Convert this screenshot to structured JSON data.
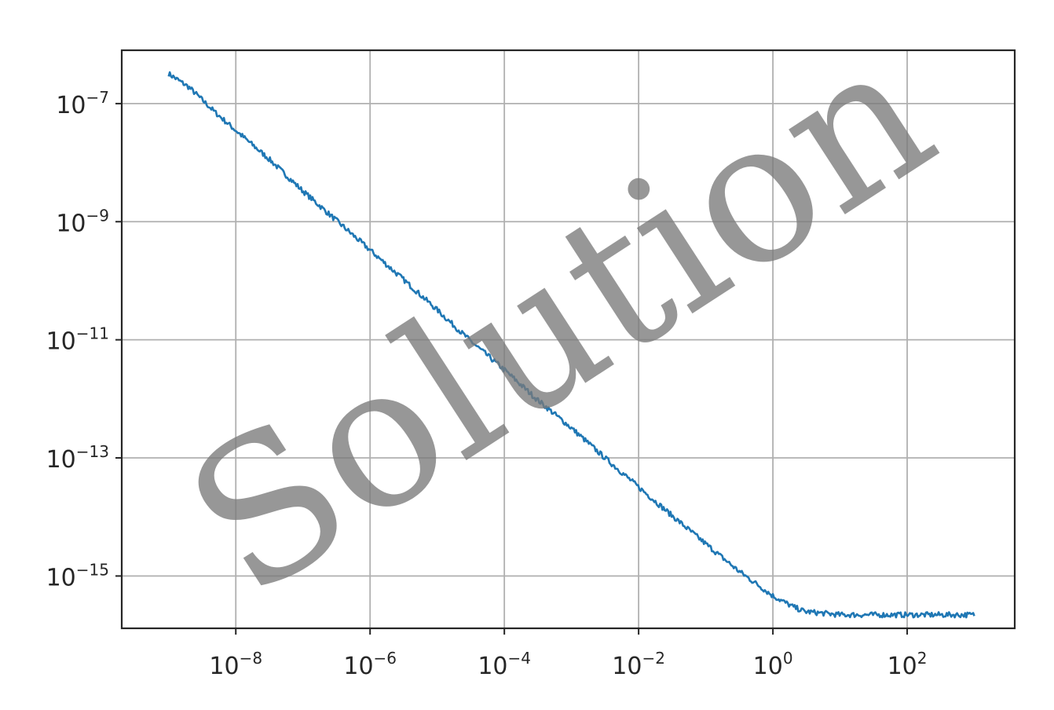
{
  "chart_data": {
    "type": "line",
    "title": "",
    "xlabel": "",
    "ylabel": "",
    "xscale": "log",
    "yscale": "log",
    "xlim": [
      2e-10,
      4000
    ],
    "ylim": [
      1.3e-16,
      8e-07
    ],
    "grid": true,
    "x_ticks": [
      {
        "value": 1e-08,
        "base": "10",
        "exp": "−8"
      },
      {
        "value": 1e-06,
        "base": "10",
        "exp": "−6"
      },
      {
        "value": 0.0001,
        "base": "10",
        "exp": "−4"
      },
      {
        "value": 0.01,
        "base": "10",
        "exp": "−2"
      },
      {
        "value": 1,
        "base": "10",
        "exp": "0"
      },
      {
        "value": 100,
        "base": "10",
        "exp": "2"
      }
    ],
    "y_ticks": [
      {
        "value": 1e-07,
        "base": "10",
        "exp": "−7"
      },
      {
        "value": 1e-09,
        "base": "10",
        "exp": "−9"
      },
      {
        "value": 1e-11,
        "base": "10",
        "exp": "−11"
      },
      {
        "value": 1e-13,
        "base": "10",
        "exp": "−13"
      },
      {
        "value": 1e-15,
        "base": "10",
        "exp": "−15"
      }
    ],
    "series": [
      {
        "color": "#1f77b4",
        "points": [
          [
            1e-09,
            3.2e-07
          ],
          [
            2e-09,
            1.9e-07
          ],
          [
            5e-09,
            7e-08
          ],
          [
            1e-08,
            3.5e-08
          ],
          [
            3e-08,
            1.2e-08
          ],
          [
            1e-07,
            3.3e-09
          ],
          [
            3e-07,
            1.1e-09
          ],
          [
            1e-06,
            3.3e-10
          ],
          [
            3e-06,
            1.1e-10
          ],
          [
            1e-05,
            3.2e-11
          ],
          [
            3e-05,
            1e-11
          ],
          [
            0.0001,
            3.1e-12
          ],
          [
            0.0003,
            1e-12
          ],
          [
            0.001,
            3.2e-13
          ],
          [
            0.003,
            1.05e-13
          ],
          [
            0.01,
            3.2e-14
          ],
          [
            0.03,
            1.1e-14
          ],
          [
            0.1,
            3.5e-15
          ],
          [
            0.3,
            1.25e-15
          ],
          [
            1,
            4.6e-16
          ],
          [
            2,
            3e-16
          ],
          [
            3,
            2.5e-16
          ],
          [
            10,
            2.2e-16
          ],
          [
            100,
            2.2e-16
          ],
          [
            1000,
            2.2e-16
          ]
        ]
      }
    ]
  },
  "watermark": {
    "text": "Solution"
  }
}
